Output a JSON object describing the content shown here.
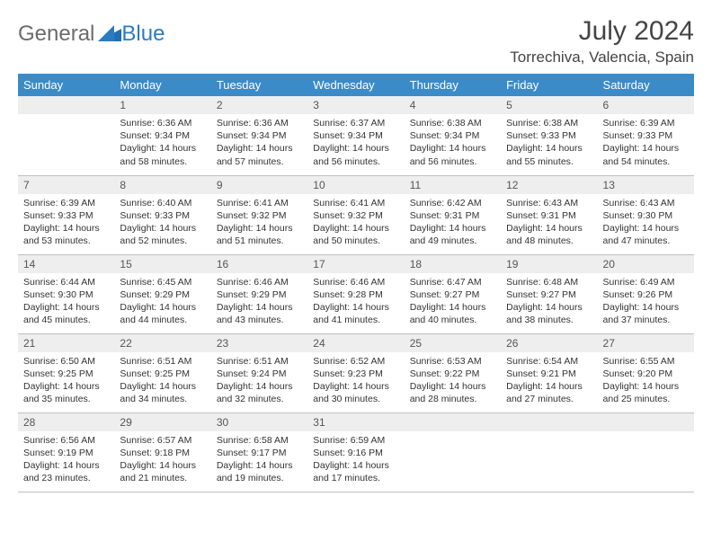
{
  "brand": {
    "word1": "General",
    "word2": "Blue"
  },
  "title": "July 2024",
  "location": "Torrechiva, Valencia, Spain",
  "colors": {
    "header_bg": "#3b8bc8",
    "header_text": "#ffffff",
    "daynum_bg": "#eeeeee",
    "border": "#bfbfbf",
    "brand_gray": "#6b6b6b",
    "brand_blue": "#2c7bbf"
  },
  "day_headers": [
    "Sunday",
    "Monday",
    "Tuesday",
    "Wednesday",
    "Thursday",
    "Friday",
    "Saturday"
  ],
  "weeks": [
    [
      null,
      {
        "n": "1",
        "sr": "6:36 AM",
        "ss": "9:34 PM",
        "dl": "14 hours and 58 minutes."
      },
      {
        "n": "2",
        "sr": "6:36 AM",
        "ss": "9:34 PM",
        "dl": "14 hours and 57 minutes."
      },
      {
        "n": "3",
        "sr": "6:37 AM",
        "ss": "9:34 PM",
        "dl": "14 hours and 56 minutes."
      },
      {
        "n": "4",
        "sr": "6:38 AM",
        "ss": "9:34 PM",
        "dl": "14 hours and 56 minutes."
      },
      {
        "n": "5",
        "sr": "6:38 AM",
        "ss": "9:33 PM",
        "dl": "14 hours and 55 minutes."
      },
      {
        "n": "6",
        "sr": "6:39 AM",
        "ss": "9:33 PM",
        "dl": "14 hours and 54 minutes."
      }
    ],
    [
      {
        "n": "7",
        "sr": "6:39 AM",
        "ss": "9:33 PM",
        "dl": "14 hours and 53 minutes."
      },
      {
        "n": "8",
        "sr": "6:40 AM",
        "ss": "9:33 PM",
        "dl": "14 hours and 52 minutes."
      },
      {
        "n": "9",
        "sr": "6:41 AM",
        "ss": "9:32 PM",
        "dl": "14 hours and 51 minutes."
      },
      {
        "n": "10",
        "sr": "6:41 AM",
        "ss": "9:32 PM",
        "dl": "14 hours and 50 minutes."
      },
      {
        "n": "11",
        "sr": "6:42 AM",
        "ss": "9:31 PM",
        "dl": "14 hours and 49 minutes."
      },
      {
        "n": "12",
        "sr": "6:43 AM",
        "ss": "9:31 PM",
        "dl": "14 hours and 48 minutes."
      },
      {
        "n": "13",
        "sr": "6:43 AM",
        "ss": "9:30 PM",
        "dl": "14 hours and 47 minutes."
      }
    ],
    [
      {
        "n": "14",
        "sr": "6:44 AM",
        "ss": "9:30 PM",
        "dl": "14 hours and 45 minutes."
      },
      {
        "n": "15",
        "sr": "6:45 AM",
        "ss": "9:29 PM",
        "dl": "14 hours and 44 minutes."
      },
      {
        "n": "16",
        "sr": "6:46 AM",
        "ss": "9:29 PM",
        "dl": "14 hours and 43 minutes."
      },
      {
        "n": "17",
        "sr": "6:46 AM",
        "ss": "9:28 PM",
        "dl": "14 hours and 41 minutes."
      },
      {
        "n": "18",
        "sr": "6:47 AM",
        "ss": "9:27 PM",
        "dl": "14 hours and 40 minutes."
      },
      {
        "n": "19",
        "sr": "6:48 AM",
        "ss": "9:27 PM",
        "dl": "14 hours and 38 minutes."
      },
      {
        "n": "20",
        "sr": "6:49 AM",
        "ss": "9:26 PM",
        "dl": "14 hours and 37 minutes."
      }
    ],
    [
      {
        "n": "21",
        "sr": "6:50 AM",
        "ss": "9:25 PM",
        "dl": "14 hours and 35 minutes."
      },
      {
        "n": "22",
        "sr": "6:51 AM",
        "ss": "9:25 PM",
        "dl": "14 hours and 34 minutes."
      },
      {
        "n": "23",
        "sr": "6:51 AM",
        "ss": "9:24 PM",
        "dl": "14 hours and 32 minutes."
      },
      {
        "n": "24",
        "sr": "6:52 AM",
        "ss": "9:23 PM",
        "dl": "14 hours and 30 minutes."
      },
      {
        "n": "25",
        "sr": "6:53 AM",
        "ss": "9:22 PM",
        "dl": "14 hours and 28 minutes."
      },
      {
        "n": "26",
        "sr": "6:54 AM",
        "ss": "9:21 PM",
        "dl": "14 hours and 27 minutes."
      },
      {
        "n": "27",
        "sr": "6:55 AM",
        "ss": "9:20 PM",
        "dl": "14 hours and 25 minutes."
      }
    ],
    [
      {
        "n": "28",
        "sr": "6:56 AM",
        "ss": "9:19 PM",
        "dl": "14 hours and 23 minutes."
      },
      {
        "n": "29",
        "sr": "6:57 AM",
        "ss": "9:18 PM",
        "dl": "14 hours and 21 minutes."
      },
      {
        "n": "30",
        "sr": "6:58 AM",
        "ss": "9:17 PM",
        "dl": "14 hours and 19 minutes."
      },
      {
        "n": "31",
        "sr": "6:59 AM",
        "ss": "9:16 PM",
        "dl": "14 hours and 17 minutes."
      },
      null,
      null,
      null
    ]
  ],
  "labels": {
    "sunrise": "Sunrise:",
    "sunset": "Sunset:",
    "daylight": "Daylight:"
  }
}
